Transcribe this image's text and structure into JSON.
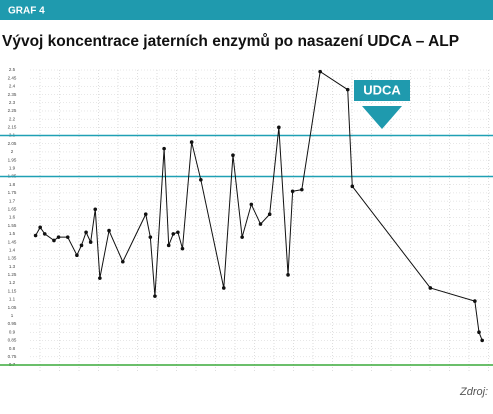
{
  "header": {
    "label": "GRAF 4"
  },
  "chart_data": {
    "type": "line",
    "title": "Vývoj koncentrace jaterních enzymů po nasazení UDCA – ALP",
    "annotation": "UDCA",
    "source": "Zdroj:",
    "x": [
      1,
      2,
      3,
      5,
      6,
      8,
      10,
      11,
      12,
      13,
      14,
      15,
      17,
      20,
      25,
      26,
      27,
      29,
      30,
      31,
      32,
      33,
      35,
      37,
      42,
      44,
      46,
      48,
      50,
      52,
      54,
      56,
      57,
      59,
      63,
      69,
      70,
      87,
      96.7,
      97.6,
      98.3
    ],
    "series": [
      {
        "color": "#111111",
        "values": [
          1.49,
          1.54,
          1.5,
          1.46,
          1.48,
          1.48,
          1.37,
          1.43,
          1.51,
          1.45,
          1.65,
          1.23,
          1.52,
          1.33,
          1.62,
          1.48,
          1.12,
          2.02,
          1.43,
          1.5,
          1.51,
          1.41,
          2.06,
          1.83,
          1.17,
          1.98,
          1.48,
          1.68,
          1.56,
          1.62,
          2.15,
          1.25,
          1.76,
          1.77,
          2.49,
          2.38,
          1.79,
          1.17,
          1.09,
          0.9,
          0.85
        ]
      }
    ],
    "xlim": [
      0,
      100
    ],
    "ylim": [
      0.7,
      2.5
    ],
    "yticks": [
      2.5,
      2.45,
      2.4,
      2.35,
      2.3,
      2.25,
      2.2,
      2.15,
      2.1,
      2.05,
      2,
      1.95,
      1.9,
      1.85,
      1.8,
      1.75,
      1.7,
      1.65,
      1.6,
      1.55,
      1.5,
      1.45,
      1.4,
      1.35,
      1.3,
      1.25,
      1.2,
      1.15,
      1.1,
      1.05,
      1,
      0.95,
      0.9,
      0.85,
      0.8,
      0.75,
      0.7
    ],
    "grid": true,
    "reference_lines": [
      {
        "value": 2.1,
        "color": "#1fa0b4"
      },
      {
        "value": 1.85,
        "color": "#1fa0b4"
      },
      {
        "value": 0.7,
        "color": "#3aaa3a"
      }
    ]
  }
}
